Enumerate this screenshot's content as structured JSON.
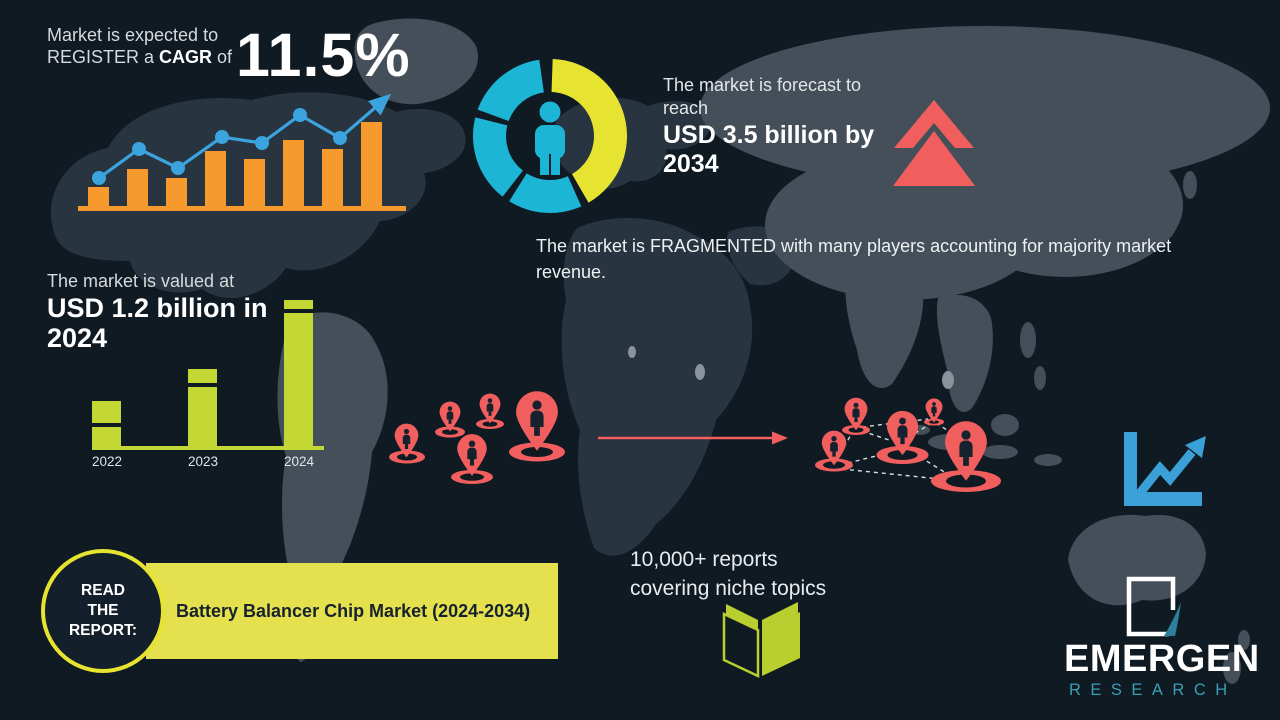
{
  "colors": {
    "background": "#0f1a23",
    "land_dark": "#28343f",
    "land_gray": "#454f59",
    "orange": "#f69a2d",
    "blue": "#3ba4de",
    "teal": "#1cb5d6",
    "yellow": "#e7e431",
    "banner_yellow": "#e5e04e",
    "green": "#c3d834",
    "coral": "#f05f5e",
    "navy_text": "#16222d",
    "logo_teal": "#3a9db5"
  },
  "cagr": {
    "line1": "Market is expected to",
    "line2_prefix": "REGISTER a ",
    "line2_bold": "CAGR",
    "line2_suffix": " of",
    "value": "11.5%"
  },
  "forecast": {
    "intro": "The market is forecast to\nreach",
    "value": "USD 3.5 billion by\n2034"
  },
  "fragmented": {
    "text": "The market is FRAGMENTED with many players accounting for majority market\nrevenue."
  },
  "valuation": {
    "line1": "The market is valued at",
    "value": "USD 1.2 billion in\n2024"
  },
  "reports": {
    "text": "10,000+ reports\ncovering niche topics"
  },
  "read_report": {
    "circle_text": "READ\nTHE\nREPORT:",
    "banner_text": "Battery Balancer Chip Market (2024-2034)"
  },
  "logo": {
    "title": "EMERGEN",
    "subtitle": "RESEARCH"
  },
  "chart_data": [
    {
      "id": "cagr_trend",
      "type": "bar",
      "title": "CAGR growth illustration (decorative, no axis labels)",
      "categories": [
        "1",
        "2",
        "3",
        "4",
        "5",
        "6",
        "7",
        "8"
      ],
      "values": [
        19,
        37,
        28,
        55,
        47,
        66,
        57,
        84
      ],
      "unit": "relative bar height, px",
      "line_points": [
        [
          21,
          94
        ],
        [
          61,
          65
        ],
        [
          100,
          84
        ],
        [
          144,
          53
        ],
        [
          184,
          59
        ],
        [
          222,
          31
        ],
        [
          262,
          54
        ],
        [
          306,
          16
        ]
      ],
      "bar_color": "#f69a2d",
      "line_color": "#3ba4de",
      "annotation": "11.5% CAGR"
    },
    {
      "id": "valuation",
      "type": "bar",
      "title": "Market value by year (illustrative heights)",
      "categories": [
        "2022",
        "2023",
        "2024"
      ],
      "values": [
        45,
        77,
        146
      ],
      "unit": "relative bar height, px",
      "stripe_offsets": [
        22,
        14,
        9
      ],
      "bar_color": "#c3d834",
      "annotation": "USD 1.2 billion in 2024"
    },
    {
      "id": "market_share",
      "type": "pie",
      "title": "Fragmented market donut (decorative)",
      "segments": [
        {
          "name": "yellow-segment",
          "color": "#e7e431",
          "start_deg": 2,
          "end_deg": 150
        },
        {
          "name": "teal-segment-1",
          "color": "#1cb5d6",
          "start_deg": 156,
          "end_deg": 212
        },
        {
          "name": "teal-segment-2",
          "color": "#1cb5d6",
          "start_deg": 218,
          "end_deg": 284
        },
        {
          "name": "teal-segment-3",
          "color": "#1cb5d6",
          "start_deg": 290,
          "end_deg": 352
        }
      ],
      "center_icon": "person-icon"
    }
  ]
}
